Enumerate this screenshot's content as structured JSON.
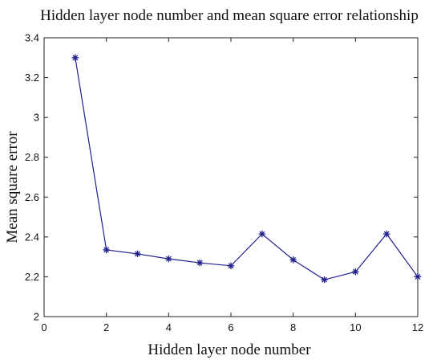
{
  "chart_data": {
    "type": "line",
    "title": "Hidden layer node number and mean square error relationship",
    "xlabel": "Hidden layer node number",
    "ylabel": "Mean square error",
    "xlim": [
      0,
      12
    ],
    "ylim": [
      2,
      3.4
    ],
    "x_ticks": [
      0,
      2,
      4,
      6,
      8,
      10,
      12
    ],
    "y_ticks": [
      2,
      2.2,
      2.4,
      2.6,
      2.8,
      3,
      3.2,
      3.4
    ],
    "x_tick_labels": [
      "0",
      "2",
      "4",
      "6",
      "8",
      "10",
      "12"
    ],
    "y_tick_labels": [
      "2",
      "2.2",
      "2.4",
      "2.6",
      "2.8",
      "3",
      "3.2",
      "3.4"
    ],
    "grid": false,
    "marker": "asterisk",
    "series_color": "#1f1f8f",
    "series": [
      {
        "x": [
          1,
          2,
          3,
          4,
          5,
          6,
          7,
          8,
          9,
          10,
          11,
          12
        ],
        "values": [
          3.3,
          2.335,
          2.315,
          2.29,
          2.27,
          2.255,
          2.415,
          2.285,
          2.185,
          2.225,
          2.415,
          2.2
        ]
      }
    ]
  }
}
